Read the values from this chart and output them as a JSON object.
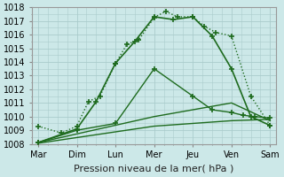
{
  "title": "",
  "xlabel": "Pression niveau de la mer( hPa )",
  "ylabel": "",
  "background_color": "#cce8e8",
  "grid_color": "#aacccc",
  "ylim": [
    1008,
    1018
  ],
  "yticks": [
    1008,
    1009,
    1010,
    1011,
    1012,
    1013,
    1014,
    1015,
    1016,
    1017,
    1018
  ],
  "xtick_labels": [
    "Mar",
    "Dim",
    "Lun",
    "Mer",
    "Jeu",
    "Ven",
    "Sam"
  ],
  "x_positions": [
    0,
    1,
    2,
    3,
    4,
    5,
    6
  ],
  "lines": [
    {
      "x": [
        0,
        3,
        4,
        5,
        6
      ],
      "y": [
        1008.05,
        1009.3,
        1009.5,
        1009.7,
        1009.8
      ],
      "color": "#1e6b1e",
      "linewidth": 1.0,
      "linestyle": "-",
      "marker": null,
      "markersize": 0,
      "zorder": 1
    },
    {
      "x": [
        0,
        3,
        4,
        5,
        6
      ],
      "y": [
        1008.1,
        1010.0,
        1010.5,
        1011.0,
        1009.7
      ],
      "color": "#1e6b1e",
      "linewidth": 1.0,
      "linestyle": "-",
      "marker": null,
      "markersize": 0,
      "zorder": 1
    },
    {
      "x": [
        0,
        1,
        2,
        3,
        4,
        4.5,
        5,
        5.3,
        5.6,
        6
      ],
      "y": [
        1008.1,
        1009.0,
        1009.5,
        1013.5,
        1011.5,
        1010.5,
        1010.3,
        1010.1,
        1010.0,
        1009.9
      ],
      "color": "#1e6b1e",
      "linewidth": 1.0,
      "linestyle": "-",
      "marker": "+",
      "markersize": 4,
      "zorder": 2
    },
    {
      "x": [
        0,
        0.6,
        1,
        1.3,
        1.6,
        2,
        2.3,
        2.6,
        3,
        3.3,
        3.6,
        4,
        4.3,
        4.6,
        5,
        5.5,
        6
      ],
      "y": [
        1009.3,
        1008.8,
        1009.3,
        1011.1,
        1011.5,
        1013.9,
        1015.3,
        1015.6,
        1017.25,
        1017.7,
        1017.3,
        1017.3,
        1016.6,
        1016.15,
        1015.9,
        1011.5,
        1009.35
      ],
      "color": "#1e6b1e",
      "linewidth": 1.0,
      "linestyle": ":",
      "marker": "+",
      "markersize": 4,
      "zorder": 3
    },
    {
      "x": [
        0,
        1,
        1.5,
        2,
        2.5,
        3,
        3.5,
        4,
        4.5,
        5,
        5.5,
        6
      ],
      "y": [
        1008.1,
        1009.1,
        1011.1,
        1013.9,
        1015.5,
        1017.3,
        1017.1,
        1017.3,
        1015.9,
        1013.5,
        1010.0,
        1009.35
      ],
      "color": "#1e6b1e",
      "linewidth": 1.2,
      "linestyle": "-",
      "marker": "+",
      "markersize": 4,
      "zorder": 4
    }
  ],
  "figsize": [
    3.2,
    2.0
  ],
  "dpi": 100,
  "xlabel_fontsize": 8,
  "tick_fontsize": 7
}
